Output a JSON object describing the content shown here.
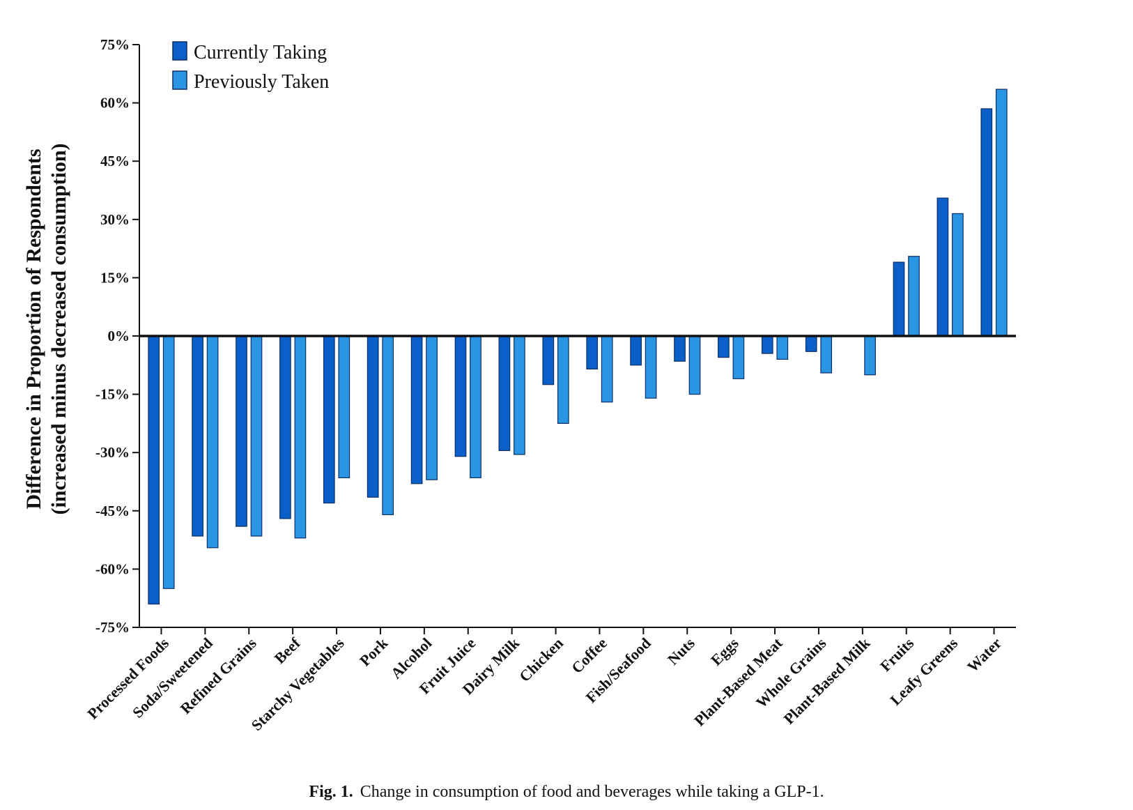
{
  "chart_data": {
    "type": "bar",
    "ylabel_line1": "Difference in Proportion of Respondents",
    "ylabel_line2": "(increased minus decreased consumption)",
    "xlabel": "",
    "ylim": [
      -75,
      75
    ],
    "yticks": [
      75,
      60,
      45,
      30,
      15,
      0,
      -15,
      -30,
      -45,
      -60,
      -75
    ],
    "ytick_labels": [
      "75%",
      "60%",
      "45%",
      "30%",
      "15%",
      "0%",
      "-15%",
      "-30%",
      "-45%",
      "-60%",
      "-75%"
    ],
    "grid": false,
    "legend_position": "top-left",
    "categories": [
      "Processed Foods",
      "Soda/Sweetened",
      "Refined Grains",
      "Beef",
      "Starchy Vegetables",
      "Pork",
      "Alcohol",
      "Fruit Juice",
      "Dairy Milk",
      "Chicken",
      "Coffee",
      "Fish/Seafood",
      "Nuts",
      "Eggs",
      "Plant-Based Meat",
      "Whole Grains",
      "Plant-Based Milk",
      "Fruits",
      "Leafy Greens",
      "Water"
    ],
    "series": [
      {
        "name": "Currently Taking",
        "color": "#0a5fc8",
        "values": [
          -69,
          -51.5,
          -49,
          -47,
          -43,
          -41.5,
          -38,
          -31,
          -29.5,
          -12.5,
          -8.5,
          -7.5,
          -6.5,
          -5.5,
          -4.5,
          -4,
          0,
          19,
          35.5,
          58.5
        ]
      },
      {
        "name": "Previously Taken",
        "color": "#2a95e2",
        "values": [
          -65,
          -54.5,
          -51.5,
          -52,
          -36.5,
          -46,
          -37,
          -36.5,
          -30.5,
          -22.5,
          -17,
          -16,
          -15,
          -11,
          -6,
          -9.5,
          -10,
          20.5,
          31.5,
          63.5
        ]
      }
    ]
  },
  "caption": {
    "label": "Fig. 1.",
    "text": "Change in consumption of food and beverages while taking a GLP-1."
  }
}
